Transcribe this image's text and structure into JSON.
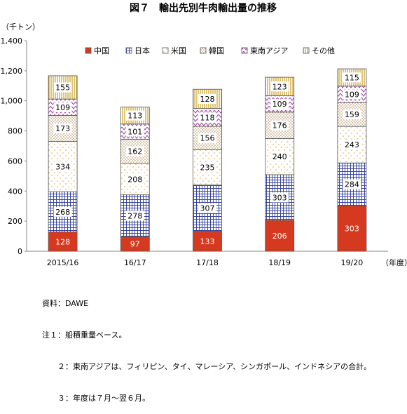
{
  "chart_data": {
    "type": "bar",
    "stacked": true,
    "title": "図７　輸出先別牛肉輸出量の推移",
    "ylabel": "（千トン）",
    "xlabel": "（年度）",
    "ylim": [
      0,
      1400
    ],
    "yticks": [
      0,
      200,
      400,
      600,
      800,
      1000,
      1200,
      1400
    ],
    "ytick_labels": [
      "0",
      "200",
      "400",
      "600",
      "800",
      "1,000",
      "1,200",
      "1,400"
    ],
    "categories": [
      "2015/16",
      "16/17",
      "17/18",
      "18/19",
      "19/20"
    ],
    "legend_position": "top",
    "grid": false,
    "series": [
      {
        "name": "中国",
        "values": [
          128,
          97,
          133,
          206,
          303
        ],
        "color": "#d53a20",
        "pattern": "solid"
      },
      {
        "name": "日本",
        "values": [
          268,
          278,
          307,
          303,
          284
        ],
        "color": "#3a47a0",
        "pattern": "grid"
      },
      {
        "name": "米国",
        "values": [
          334,
          208,
          235,
          240,
          243
        ],
        "color": "#e0a040",
        "pattern": "dots"
      },
      {
        "name": "韓国",
        "values": [
          173,
          162,
          156,
          176,
          159
        ],
        "color": "#b08a55",
        "pattern": "dense-dots"
      },
      {
        "name": "東南アジア",
        "values": [
          109,
          101,
          118,
          109,
          109
        ],
        "color": "#9a3fa0",
        "pattern": "zigzag"
      },
      {
        "name": "その他",
        "values": [
          155,
          113,
          128,
          123,
          115
        ],
        "color": "#c8a020",
        "pattern": "vlines"
      }
    ]
  },
  "notes": [
    "資料：DAWE",
    "注１：船積重量ベース。",
    "２：東南アジアは、フィリピン、タイ、マレーシア、シンガポール、インドネシアの合計。",
    "３：年度は７月～翌６月。"
  ]
}
